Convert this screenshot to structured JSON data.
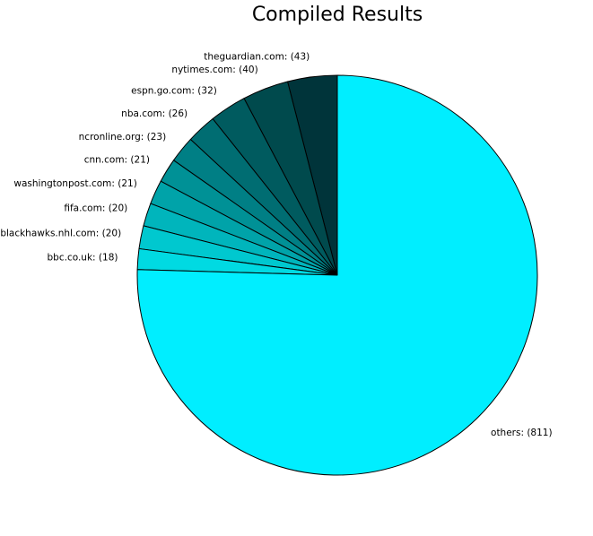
{
  "chart_data": {
    "type": "pie",
    "title": "Compiled Results",
    "slices": [
      {
        "label": "theguardian.com: (43)",
        "value": 43,
        "color": "#00343a"
      },
      {
        "label": "nytimes.com: (40)",
        "value": 40,
        "color": "#004a4d"
      },
      {
        "label": "espn.go.com: (32)",
        "value": 32,
        "color": "#005b5f"
      },
      {
        "label": "nba.com: (26)",
        "value": 26,
        "color": "#006d72"
      },
      {
        "label": "ncronline.org: (23)",
        "value": 23,
        "color": "#007f85"
      },
      {
        "label": "cnn.com: (21)",
        "value": 21,
        "color": "#009196"
      },
      {
        "label": "washingtonpost.com: (21)",
        "value": 21,
        "color": "#00a3a9"
      },
      {
        "label": "fifa.com: (20)",
        "value": 20,
        "color": "#00b5bc"
      },
      {
        "label": "blackhawks.nhl.com: (20)",
        "value": 20,
        "color": "#00c8cf"
      },
      {
        "label": "bbc.co.uk: (18)",
        "value": 18,
        "color": "#00dae2"
      },
      {
        "label": "others: (811)",
        "value": 811,
        "color": "#00eeff"
      }
    ],
    "start_angle_deg": 90,
    "direction": "counterclockwise",
    "edge_color": "#000000"
  }
}
